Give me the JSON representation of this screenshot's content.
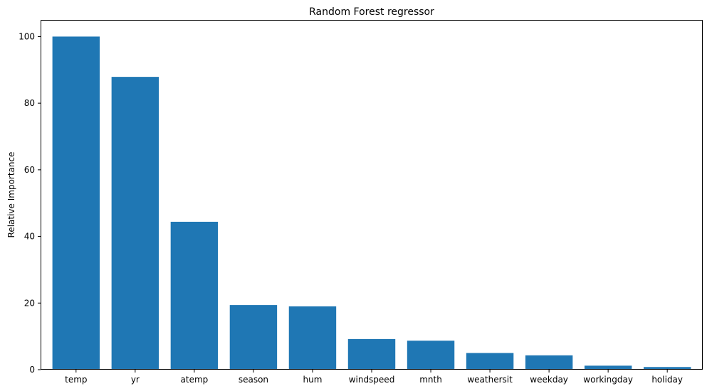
{
  "chart_data": {
    "type": "bar",
    "title": "Random Forest regressor",
    "xlabel": "",
    "ylabel": "Relative Importance",
    "categories": [
      "temp",
      "yr",
      "atemp",
      "season",
      "hum",
      "windspeed",
      "mnth",
      "weathersit",
      "weekday",
      "workingday",
      "holiday"
    ],
    "values": [
      100,
      87.9,
      44.4,
      19.4,
      19.0,
      9.2,
      8.7,
      5.0,
      4.3,
      1.2,
      0.8
    ],
    "ylim": [
      0,
      105
    ],
    "yticks": [
      0,
      20,
      40,
      60,
      80,
      100
    ],
    "grid": false,
    "legend": "none",
    "bar_color": "#1f77b4"
  }
}
